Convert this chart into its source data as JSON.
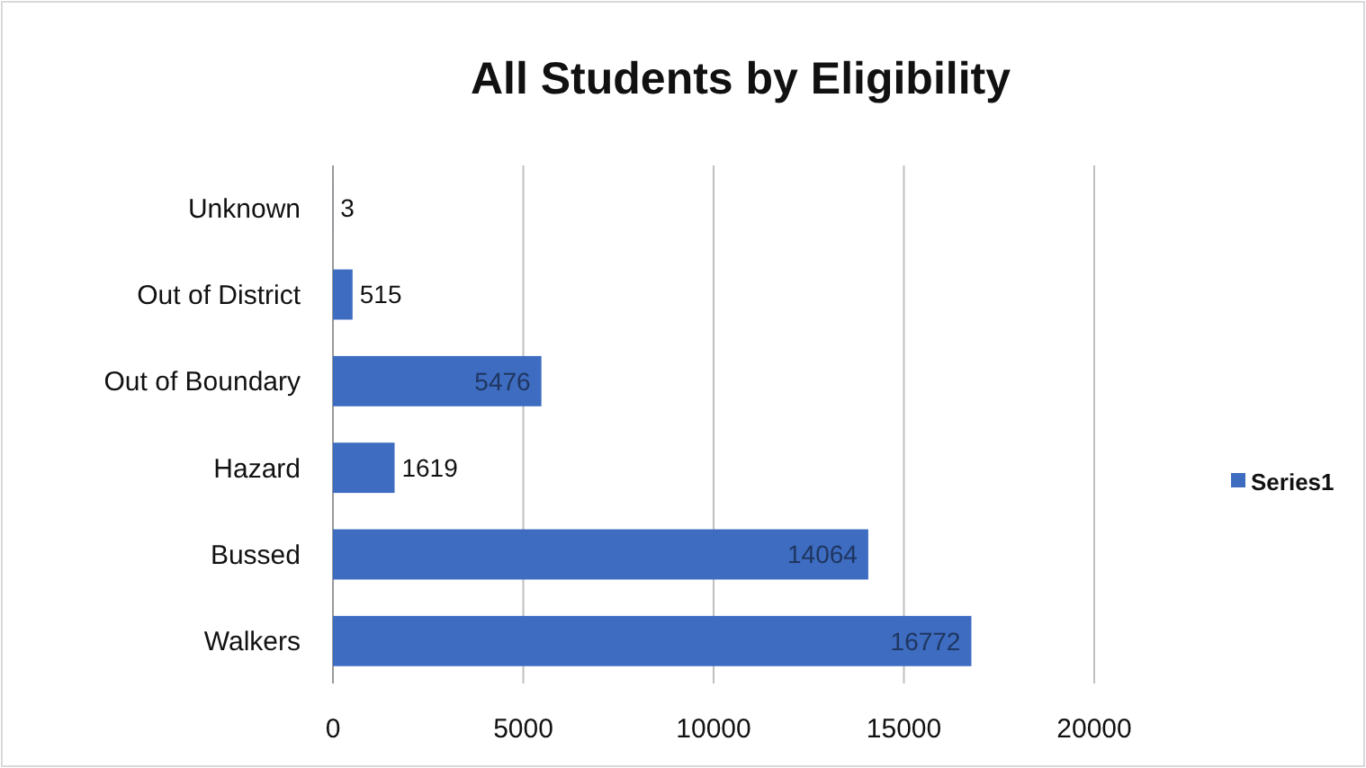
{
  "chart_data": {
    "type": "bar",
    "title": "All Students by Eligibility",
    "orientation": "horizontal",
    "categories": [
      "Unknown",
      "Out of District",
      "Out of Boundary",
      "Hazard",
      "Bussed",
      "Walkers"
    ],
    "series": [
      {
        "name": "Series1",
        "color": "#3d6cc0",
        "values": [
          3,
          515,
          5476,
          1619,
          14064,
          16772
        ]
      }
    ],
    "xlim": [
      0,
      20000
    ],
    "xticks": [
      0,
      5000,
      10000,
      15000,
      20000
    ],
    "grid": "x",
    "legend": "right",
    "data_labels": true
  }
}
